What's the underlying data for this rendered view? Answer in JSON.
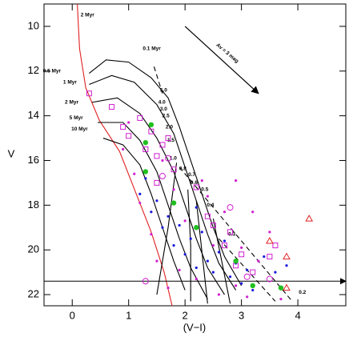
{
  "chart_data": {
    "type": "scatter",
    "xlabel": "(V−I)",
    "ylabel": "V",
    "xlim": [
      -0.5,
      4.85
    ],
    "ylim": [
      9,
      22.5
    ],
    "y_inverted": true,
    "xticks": [
      0,
      1,
      2,
      3,
      4
    ],
    "yticks": [
      10,
      12,
      14,
      16,
      18,
      20,
      22
    ],
    "series": [
      {
        "marker": "dot",
        "color": "#1a1adc",
        "x": [
          1.2,
          1.4,
          1.5,
          1.6,
          1.7,
          1.8,
          1.9,
          2.0,
          2.1,
          2.2,
          2.3,
          2.4,
          2.5,
          2.6,
          2.7,
          2.8,
          2.9,
          3.0,
          3.1,
          3.2,
          3.4,
          3.6,
          3.8,
          2.2,
          1.3
        ],
        "y": [
          17.5,
          18.3,
          17.8,
          19,
          18.5,
          19.8,
          18.9,
          20.2,
          19.5,
          20.8,
          19.2,
          20.5,
          21,
          20.1,
          19.6,
          21.2,
          20.6,
          21.5,
          20.9,
          21.8,
          20.3,
          21.0,
          20.7,
          18.1,
          16.8
        ]
      },
      {
        "marker": "dot",
        "color": "#d020d0",
        "x": [
          0.9,
          1.1,
          1.2,
          1.4,
          1.5,
          1.7,
          1.8,
          1.9,
          2.0,
          2.2,
          2.3,
          2.5,
          2.6,
          2.7,
          2.9,
          2.9,
          3.0,
          3.1,
          3.3,
          3.5,
          3.7,
          1.0,
          1.6,
          2.4,
          3.2
        ],
        "y": [
          15.5,
          16.6,
          17.9,
          19.3,
          20.5,
          21.7,
          17.3,
          20.9,
          18.7,
          21.3,
          16.9,
          19.8,
          22.0,
          18.3,
          21.6,
          16.9,
          19.9,
          22.1,
          20.5,
          19.2,
          22.2,
          14.3,
          16.0,
          17.6,
          18.3
        ]
      },
      {
        "marker": "square",
        "color": "#d020d0",
        "x": [
          0.3,
          0.7,
          0.9,
          1.0,
          1.2,
          1.3,
          1.5,
          1.6,
          1.5,
          1.8,
          2.2,
          2.4,
          2.5,
          2.7,
          2.8,
          2.9,
          3.0,
          3.2,
          3.5,
          3.6,
          1.4,
          1.7
        ],
        "y": [
          13.0,
          13.6,
          14.5,
          14.9,
          14.1,
          15.5,
          15.8,
          15.3,
          17.0,
          16.4,
          17.2,
          18.5,
          18.9,
          19.8,
          19.2,
          20.7,
          20.2,
          21.0,
          20.3,
          19.8,
          14.7,
          15.0
        ]
      },
      {
        "marker": "circle",
        "color": "#d020d0",
        "x": [
          1.7,
          1.6,
          1.3,
          2.8,
          3.1,
          3.5
        ],
        "y": [
          15.9,
          16.7,
          21.4,
          18.1,
          21.2,
          21.3
        ]
      },
      {
        "marker": "filled-circle",
        "color": "#20c020",
        "x": [
          1.4,
          1.3,
          1.3,
          1.8,
          2.2,
          2.9,
          3.2,
          3.7
        ],
        "y": [
          14.4,
          15.2,
          16.5,
          17.9,
          19.0,
          20.5,
          21.6,
          21.7
        ]
      },
      {
        "marker": "triangle",
        "color": "#e02020",
        "x": [
          3.8,
          3.5,
          3.8,
          4.2
        ],
        "y": [
          21.7,
          19.6,
          20.3,
          18.6
        ]
      }
    ],
    "lines": [
      {
        "color": "#e02020",
        "dash": false,
        "x": [
          0.09,
          0.13,
          0.24,
          0.48,
          0.84,
          1.12,
          1.4,
          1.63,
          1.77
        ],
        "y": [
          9,
          11,
          12.75,
          14.2,
          15.6,
          17.4,
          19.2,
          21,
          22.5
        ]
      },
      {
        "color": "#000000",
        "dash": false,
        "x": [
          0.3,
          0.6,
          1.0,
          1.4,
          1.7,
          1.9,
          2.1,
          2.3,
          2.5,
          2.7,
          3.0
        ],
        "y": [
          12.1,
          11.5,
          11.6,
          12.3,
          13.2,
          14.5,
          16,
          17.5,
          19,
          20.3,
          21.6
        ]
      },
      {
        "color": "#000000",
        "dash": false,
        "x": [
          0.3,
          0.7,
          1.1,
          1.5,
          1.8,
          2.0,
          2.2,
          2.4,
          2.6,
          2.9
        ],
        "y": [
          12.6,
          12.2,
          12.5,
          13.5,
          14.8,
          16.3,
          17.8,
          19.3,
          20.6,
          21.8
        ]
      },
      {
        "color": "#000000",
        "dash": false,
        "x": [
          0.35,
          0.8,
          1.2,
          1.5,
          1.8,
          2.0,
          2.2,
          2.4,
          2.7
        ],
        "y": [
          13.4,
          13.2,
          13.9,
          15,
          16.5,
          18,
          19.5,
          20.8,
          22
        ]
      },
      {
        "color": "#000000",
        "dash": false,
        "x": [
          0.45,
          0.9,
          1.2,
          1.5,
          1.7,
          1.9,
          2.1,
          2.4
        ],
        "y": [
          14.3,
          14.3,
          15.1,
          16.5,
          18,
          19.5,
          20.8,
          22.2
        ]
      },
      {
        "color": "#000000",
        "dash": false,
        "x": [
          0.55,
          0.9,
          1.2,
          1.4,
          1.6,
          1.8,
          2.0
        ],
        "y": [
          15,
          15.3,
          16.2,
          17.5,
          19,
          20.5,
          21.8
        ]
      },
      {
        "color": "#000000",
        "dash": false,
        "x": [
          1.85,
          1.7,
          1.5
        ],
        "y": [
          16.1,
          19,
          22
        ]
      },
      {
        "color": "#000000",
        "dash": false,
        "x": [
          2.05,
          2.1,
          2.1
        ],
        "y": [
          17.3,
          19.8,
          22.3
        ]
      },
      {
        "color": "#000000",
        "dash": false,
        "x": [
          2.2,
          2.3,
          2.4
        ],
        "y": [
          17.8,
          20.1,
          22.4
        ]
      },
      {
        "color": "#000000",
        "dash": false,
        "x": [
          2.5,
          2.65,
          2.8
        ],
        "y": [
          18.6,
          20.5,
          22.4
        ]
      },
      {
        "color": "#000000",
        "dash": true,
        "x": [
          1.45,
          1.6
        ],
        "y": [
          11.8,
          13.0
        ]
      },
      {
        "color": "#000000",
        "dash": true,
        "x": [
          1.9,
          3.9
        ],
        "y": [
          16.3,
          22.3
        ]
      },
      {
        "color": "#000000",
        "dash": true,
        "x": [
          2.6,
          3.6
        ],
        "y": [
          19.5,
          22.3
        ]
      }
    ],
    "reference_line": {
      "y": 21.4
    },
    "arrow": {
      "x": [
        2.0,
        3.3
      ],
      "y": [
        10,
        13
      ]
    },
    "annotations": [
      {
        "text": "Av = 3 mag",
        "x": 2.75,
        "y": 11.2
      },
      {
        "text": "2 Myr",
        "x": 0.27,
        "y": 9.5
      },
      {
        "text": "0.1 Myr",
        "x": 1.41,
        "y": 11.0
      },
      {
        "text": "0.5 Myr",
        "x": -0.36,
        "y": 12.0
      },
      {
        "text": "1 Myr",
        "x": -0.04,
        "y": 12.5
      },
      {
        "text": "2 Myr",
        "x": -0.01,
        "y": 13.4
      },
      {
        "text": "5 Myr",
        "x": 0.07,
        "y": 14.1
      },
      {
        "text": "10 Myr",
        "x": 0.13,
        "y": 14.6
      },
      {
        "text": "5.0",
        "x": 1.62,
        "y": 12.86
      },
      {
        "text": "4.0",
        "x": 1.59,
        "y": 13.4
      },
      {
        "text": "3.0",
        "x": 1.62,
        "y": 13.7
      },
      {
        "text": "2.5",
        "x": 1.66,
        "y": 14.0
      },
      {
        "text": "2.0",
        "x": 1.72,
        "y": 14.5
      },
      {
        "text": "1.5",
        "x": 1.75,
        "y": 15.1
      },
      {
        "text": "1.0",
        "x": 1.79,
        "y": 15.9
      },
      {
        "text": "0.8",
        "x": 1.96,
        "y": 16.36
      },
      {
        "text": "0.7",
        "x": 2.12,
        "y": 16.64
      },
      {
        "text": "0.6",
        "x": 2.16,
        "y": 17.0
      },
      {
        "text": "0.5",
        "x": 2.35,
        "y": 17.3
      },
      {
        "text": "0.4",
        "x": 2.45,
        "y": 18.0
      },
      {
        "text": "0.3",
        "x": 2.83,
        "y": 19.3
      },
      {
        "text": "0.2",
        "x": 4.08,
        "y": 21.9
      }
    ]
  }
}
